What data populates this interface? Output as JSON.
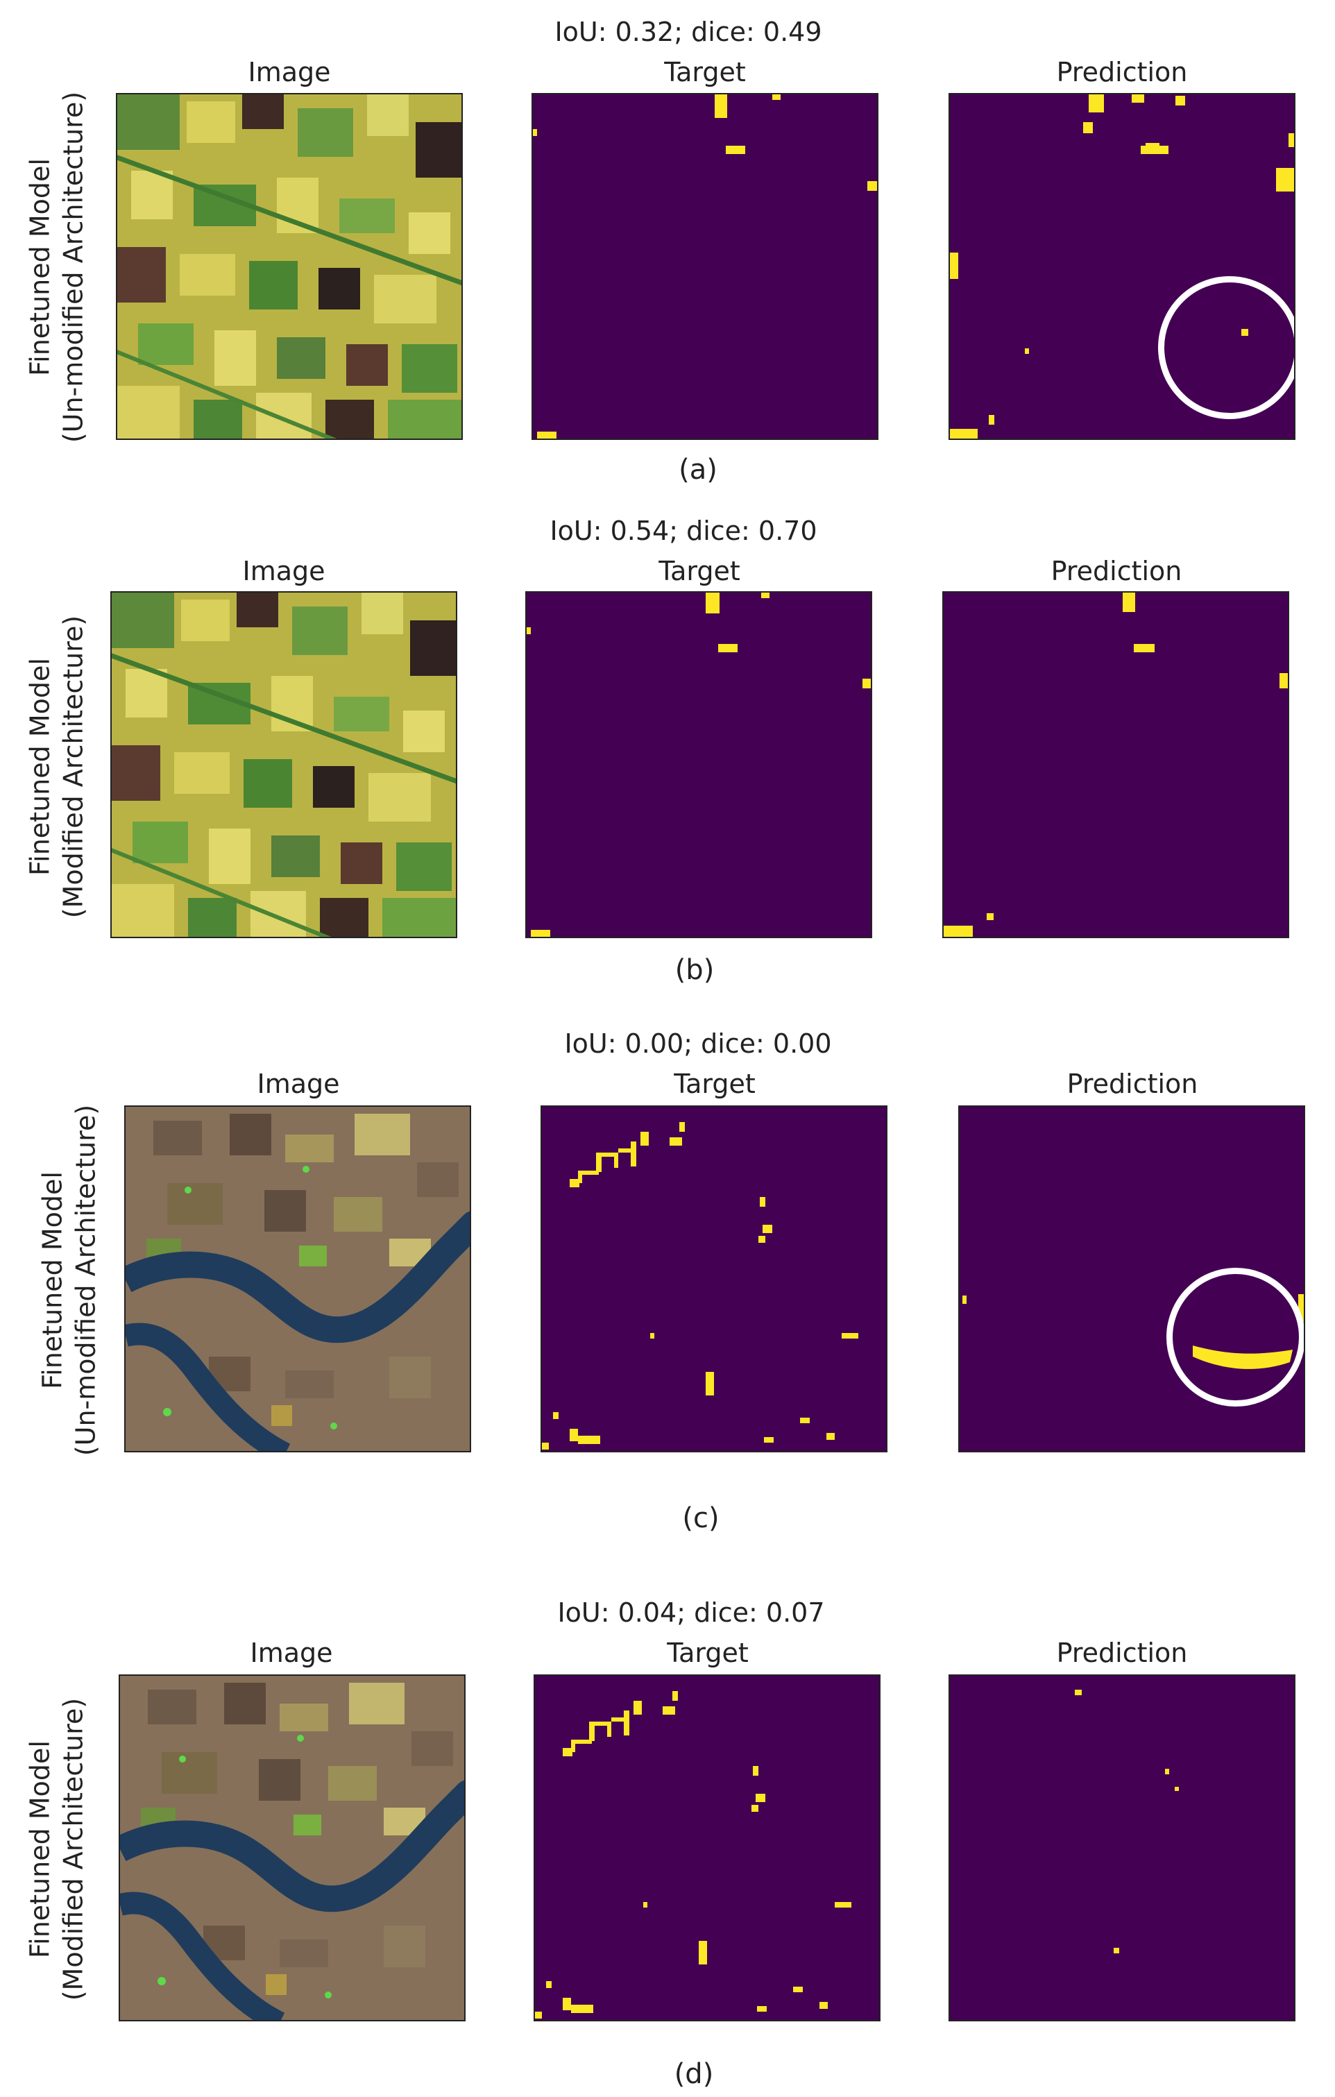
{
  "rows": [
    {
      "metrics": "IoU: 0.32; dice: 0.49",
      "row_label_line1": "Finetuned Model",
      "row_label_line2": "(Un-modified Architecture)",
      "image_title": "Image",
      "target_title": "Target",
      "prediction_title": "Prediction",
      "caption": "(a)"
    },
    {
      "metrics": "IoU: 0.54; dice: 0.70",
      "row_label_line1": "Finetuned Model",
      "row_label_line2": "(Modified Architecture)",
      "image_title": "Image",
      "target_title": "Target",
      "prediction_title": "Prediction",
      "caption": "(b)"
    },
    {
      "metrics": "IoU: 0.00; dice: 0.00",
      "row_label_line1": "Finetuned Model",
      "row_label_line2": "(Un-modified Architecture)",
      "image_title": "Image",
      "target_title": "Target",
      "prediction_title": "Prediction",
      "caption": "(c)"
    },
    {
      "metrics": "IoU: 0.04; dice: 0.07",
      "row_label_line1": "Finetuned Model",
      "row_label_line2": "(Modified Architecture)",
      "image_title": "Image",
      "target_title": "Target",
      "prediction_title": "Prediction",
      "caption": "(d)"
    }
  ],
  "colors": {
    "mask_background": "#440154",
    "mask_foreground": "#fde725",
    "highlight_circle": "#ffffff"
  }
}
